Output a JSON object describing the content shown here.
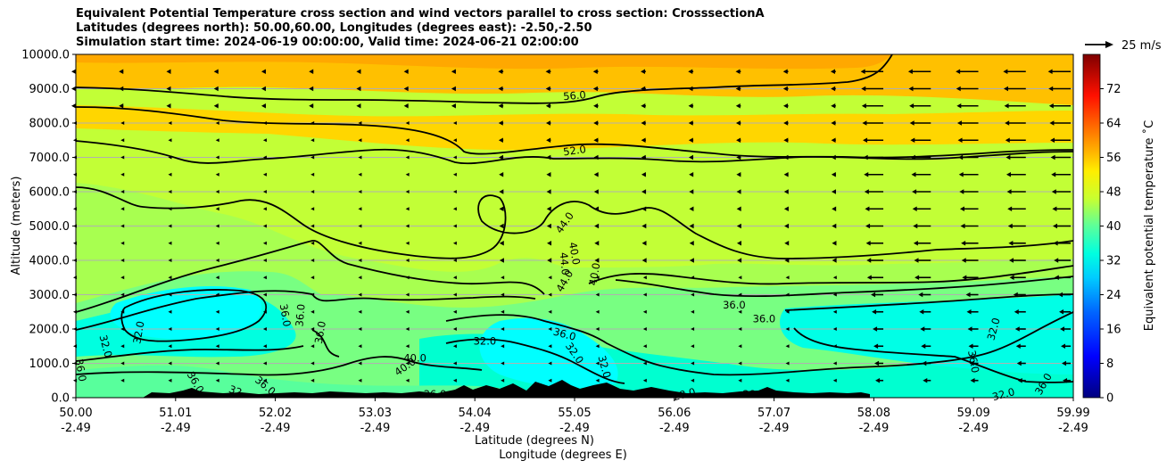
{
  "title_lines": [
    "Equivalent Potential Temperature cross section and wind vectors parallel to cross section: CrosssectionA",
    "Latitudes (degrees north): 50.00,60.00, Longitudes (degrees east): -2.50,-2.50",
    "Simulation start time: 2024-06-19 00:00:00, Valid time: 2024-06-21 02:00:00"
  ],
  "chart_data": {
    "type": "contourf",
    "ylabel": "Altitude (meters)",
    "xlabel_lat": "Latitude (degrees N)",
    "xlabel_lon": "Longitude (degrees E)",
    "ylim": [
      0,
      10000
    ],
    "y_ticks": [
      "0.0",
      "1000.0",
      "2000.0",
      "3000.0",
      "4000.0",
      "5000.0",
      "6000.0",
      "7000.0",
      "8000.0",
      "9000.0",
      "10000.0"
    ],
    "x_ticks": [
      {
        "lat": "50.00",
        "lon": "-2.49"
      },
      {
        "lat": "51.01",
        "lon": "-2.49"
      },
      {
        "lat": "52.02",
        "lon": "-2.49"
      },
      {
        "lat": "53.03",
        "lon": "-2.49"
      },
      {
        "lat": "54.04",
        "lon": "-2.49"
      },
      {
        "lat": "55.05",
        "lon": "-2.49"
      },
      {
        "lat": "56.06",
        "lon": "-2.49"
      },
      {
        "lat": "57.07",
        "lon": "-2.49"
      },
      {
        "lat": "58.08",
        "lon": "-2.49"
      },
      {
        "lat": "59.09",
        "lon": "-2.49"
      },
      {
        "lat": "59.99",
        "lon": "-2.49"
      }
    ],
    "colorbar": {
      "label": "Equivalent potential temperature ˚C",
      "ticks": [
        "0",
        "8",
        "16",
        "24",
        "32",
        "40",
        "48",
        "56",
        "64",
        "72"
      ],
      "range": [
        0,
        80
      ]
    },
    "contour_labels": [
      {
        "text": "56.0",
        "x": 0.5,
        "y": 8800,
        "rot": -5
      },
      {
        "text": "52.0",
        "x": 0.5,
        "y": 7200,
        "rot": -8
      },
      {
        "text": "44.0",
        "x": 0.49,
        "y": 5100,
        "rot": -55
      },
      {
        "text": "40.0",
        "x": 0.5,
        "y": 4200,
        "rot": 80
      },
      {
        "text": "44.0",
        "x": 0.49,
        "y": 3900,
        "rot": 85
      },
      {
        "text": "40.0",
        "x": 0.52,
        "y": 3600,
        "rot": -80
      },
      {
        "text": "44.0",
        "x": 0.49,
        "y": 3400,
        "rot": -60
      },
      {
        "text": "36.0",
        "x": 0.66,
        "y": 2700,
        "rot": 0
      },
      {
        "text": "36.0",
        "x": 0.69,
        "y": 2300,
        "rot": 0
      },
      {
        "text": "36.0",
        "x": 0.21,
        "y": 2400,
        "rot": 80
      },
      {
        "text": "36.0",
        "x": 0.225,
        "y": 2400,
        "rot": -85
      },
      {
        "text": "36.0",
        "x": 0.245,
        "y": 1900,
        "rot": -80
      },
      {
        "text": "32.0",
        "x": 0.063,
        "y": 1900,
        "rot": -80
      },
      {
        "text": "32.0",
        "x": 0.03,
        "y": 1500,
        "rot": 75
      },
      {
        "text": "32.0",
        "x": 0.41,
        "y": 1650,
        "rot": 0
      },
      {
        "text": "36.0",
        "x": 0.49,
        "y": 1850,
        "rot": 15
      },
      {
        "text": "32.0",
        "x": 0.5,
        "y": 1300,
        "rot": 55
      },
      {
        "text": "32.0",
        "x": 0.53,
        "y": 900,
        "rot": 75
      },
      {
        "text": "40.0",
        "x": 0.34,
        "y": 1150,
        "rot": 0
      },
      {
        "text": "40.0",
        "x": 0.33,
        "y": 900,
        "rot": -35
      },
      {
        "text": "36.0",
        "x": 0.005,
        "y": 800,
        "rot": 80
      },
      {
        "text": "32.0",
        "x": 0.92,
        "y": 2000,
        "rot": -75
      },
      {
        "text": "36.0",
        "x": 0.9,
        "y": 1050,
        "rot": 80
      },
      {
        "text": "32.0",
        "x": 0.93,
        "y": 100,
        "rot": -15
      },
      {
        "text": "36.0",
        "x": 0.97,
        "y": 400,
        "rot": -60
      },
      {
        "text": "28.0",
        "x": 0.61,
        "y": 100,
        "rot": -15
      },
      {
        "text": "28.0",
        "x": 0.68,
        "y": 100,
        "rot": 0
      },
      {
        "text": "36.0",
        "x": 0.12,
        "y": 450,
        "rot": 60
      },
      {
        "text": "32",
        "x": 0.16,
        "y": 200,
        "rot": 20
      },
      {
        "text": "36.0",
        "x": 0.19,
        "y": 350,
        "rot": 40
      },
      {
        "text": "36.0",
        "x": 0.36,
        "y": 100,
        "rot": 0
      }
    ],
    "wind_reference": "25 m/s"
  }
}
